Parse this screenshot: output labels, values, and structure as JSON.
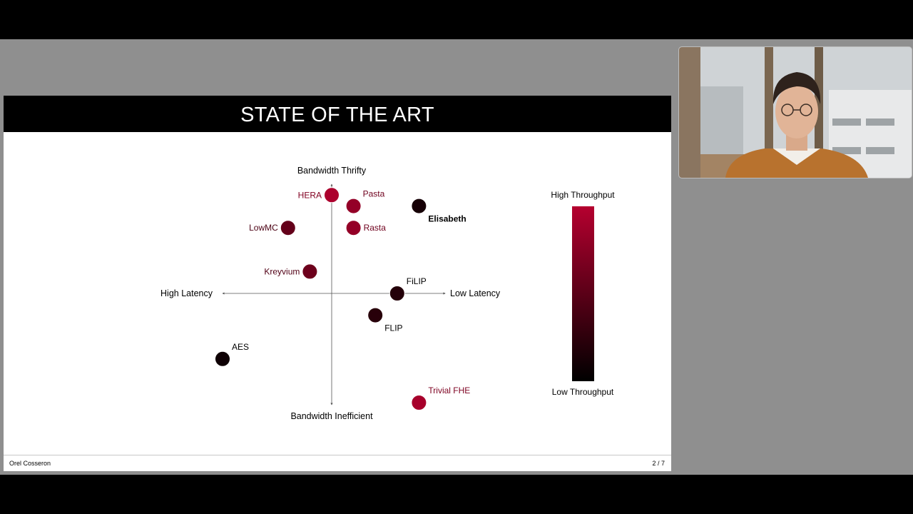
{
  "slide": {
    "title": "STATE OF THE ART",
    "author": "Orel Cosseron",
    "page": "2 / 7"
  },
  "colors": {
    "high": "#b5002f",
    "low": "#000000",
    "axis": "#555555"
  },
  "chart_data": {
    "type": "scatter",
    "title": "",
    "axes": {
      "x_negative": "High Latency",
      "x_positive": "Low Latency",
      "y_positive": "Bandwidth Thrifty",
      "y_negative": "Bandwidth Inefficient"
    },
    "xlim": [
      -5,
      5
    ],
    "ylim": [
      -5,
      5
    ],
    "colorbar": {
      "top_label": "High Throughput",
      "bottom_label": "Low Throughput"
    },
    "points": [
      {
        "name": "HERA",
        "x": 0,
        "y": 4.5,
        "throughput": 0.95,
        "label_pos": "left"
      },
      {
        "name": "Pasta",
        "x": 1,
        "y": 4,
        "throughput": 0.82,
        "label_pos": "above-right"
      },
      {
        "name": "Elisabeth",
        "x": 4,
        "y": 4,
        "throughput": 0.12,
        "label_pos": "below-right"
      },
      {
        "name": "LowMC",
        "x": -2,
        "y": 3,
        "throughput": 0.55,
        "label_pos": "left"
      },
      {
        "name": "Rasta",
        "x": 1,
        "y": 3,
        "throughput": 0.82,
        "label_pos": "right"
      },
      {
        "name": "Kreyvium",
        "x": -1,
        "y": 1,
        "throughput": 0.6,
        "label_pos": "left"
      },
      {
        "name": "FiLIP",
        "x": 3,
        "y": 0,
        "throughput": 0.2,
        "label_pos": "above-right"
      },
      {
        "name": "FLIP",
        "x": 2,
        "y": -1,
        "throughput": 0.22,
        "label_pos": "below-right"
      },
      {
        "name": "AES",
        "x": -5,
        "y": -3,
        "throughput": 0.08,
        "label_pos": "above-right"
      },
      {
        "name": "Trivial FHE",
        "x": 4,
        "y": -5,
        "throughput": 0.92,
        "label_pos": "above-right"
      }
    ]
  }
}
